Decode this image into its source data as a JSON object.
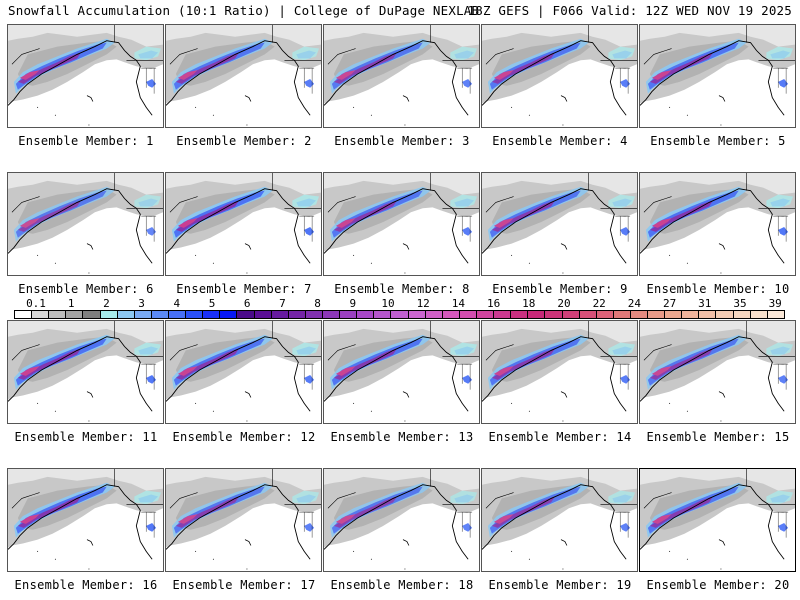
{
  "header": {
    "title_left": "Snowfall Accumulation (10:1 Ratio) | College of DuPage NEXLAB",
    "title_right": "18Z GEFS | F066 Valid: 12Z WED NOV 19 2025"
  },
  "panels": [
    {
      "label": "Ensemble Member: 1",
      "intensity": 0.8
    },
    {
      "label": "Ensemble Member: 2",
      "intensity": 0.75
    },
    {
      "label": "Ensemble Member: 3",
      "intensity": 0.7
    },
    {
      "label": "Ensemble Member: 4",
      "intensity": 0.75
    },
    {
      "label": "Ensemble Member: 5",
      "intensity": 0.8
    },
    {
      "label": "Ensemble Member: 6",
      "intensity": 0.6
    },
    {
      "label": "Ensemble Member: 7",
      "intensity": 0.9
    },
    {
      "label": "Ensemble Member: 8",
      "intensity": 0.75
    },
    {
      "label": "Ensemble Member: 9",
      "intensity": 0.75
    },
    {
      "label": "Ensemble Member: 10",
      "intensity": 0.85
    },
    {
      "label": "Ensemble Member: 11",
      "intensity": 0.85
    },
    {
      "label": "Ensemble Member: 12",
      "intensity": 0.8
    },
    {
      "label": "Ensemble Member: 13",
      "intensity": 0.8
    },
    {
      "label": "Ensemble Member: 14",
      "intensity": 0.75
    },
    {
      "label": "Ensemble Member: 15",
      "intensity": 0.7
    },
    {
      "label": "Ensemble Member: 16",
      "intensity": 0.85
    },
    {
      "label": "Ensemble Member: 17",
      "intensity": 0.7
    },
    {
      "label": "Ensemble Member: 18",
      "intensity": 0.65
    },
    {
      "label": "Ensemble Member: 19",
      "intensity": 0.7
    },
    {
      "label": "Ensemble Member: 20",
      "intensity": 0.75,
      "highlighted": true
    }
  ],
  "colorbar": {
    "labels": [
      "0.1",
      "1",
      "2",
      "3",
      "4",
      "5",
      "6",
      "7",
      "8",
      "9",
      "10",
      "12",
      "14",
      "16",
      "18",
      "20",
      "22",
      "24",
      "27",
      "31",
      "35",
      "39"
    ],
    "colors": [
      "#ffffff",
      "#d9d9d9",
      "#bdbdbd",
      "#a3a3a3",
      "#7f7f7f",
      "#a8ecec",
      "#8dc8f2",
      "#7aaaf3",
      "#5c8af5",
      "#4870f7",
      "#2a50f8",
      "#1a30f8",
      "#0818f5",
      "#4a0a8a",
      "#5a0e96",
      "#661a9e",
      "#7424a6",
      "#8030b0",
      "#8c38b8",
      "#9a40c0",
      "#a848c8",
      "#b456cc",
      "#c05fd0",
      "#cc66d0",
      "#d060c6",
      "#d458bc",
      "#d44eb0",
      "#d0449e",
      "#cc3a90",
      "#c83080",
      "#c82878",
      "#cc3478",
      "#d04078",
      "#d85078",
      "#dc6278",
      "#e07878",
      "#e48a80",
      "#e89a88",
      "#eca890",
      "#f0b49c",
      "#f2c0a8",
      "#f4ccb4",
      "#f6d6c0",
      "#f8e0cc",
      "#fbe8d8"
    ]
  }
}
